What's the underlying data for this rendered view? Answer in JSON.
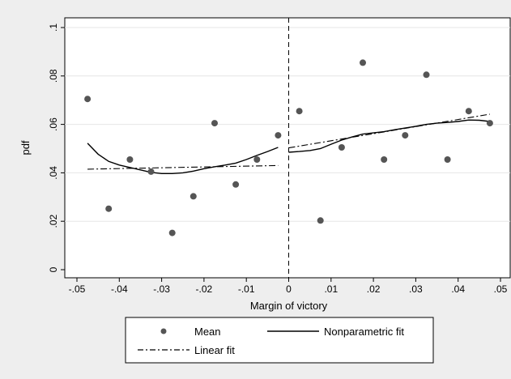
{
  "chart_data": {
    "type": "scatter",
    "xlabel": "Margin of victory",
    "ylabel": "pdf",
    "xlim": [
      -0.05,
      0.05
    ],
    "ylim": [
      0,
      0.1
    ],
    "grid": "horizontal",
    "x_ticks": [
      -0.05,
      -0.04,
      -0.03,
      -0.02,
      -0.01,
      0,
      0.01,
      0.02,
      0.03,
      0.04,
      0.05
    ],
    "x_tick_labels": [
      "-.05",
      "-.04",
      "-.03",
      "-.02",
      "-.01",
      "0",
      ".01",
      ".02",
      ".03",
      ".04",
      ".05"
    ],
    "y_ticks": [
      0,
      0.02,
      0.04,
      0.06,
      0.08,
      0.1
    ],
    "y_tick_labels": [
      "0",
      ".02",
      ".04",
      ".06",
      ".08",
      ".1"
    ],
    "cutoff_x": 0,
    "legend_placement": "bottom",
    "series": [
      {
        "name": "Mean",
        "kind": "points",
        "color": "#555555",
        "x": [
          -0.0475,
          -0.0425,
          -0.0375,
          -0.0325,
          -0.0275,
          -0.0225,
          -0.0175,
          -0.0125,
          -0.0075,
          -0.0025,
          0.0025,
          0.0075,
          0.0125,
          0.0175,
          0.0225,
          0.0275,
          0.0325,
          0.0375,
          0.0425,
          0.0475
        ],
        "y": [
          0.0705,
          0.0252,
          0.0455,
          0.0405,
          0.0152,
          0.0303,
          0.0605,
          0.0352,
          0.0455,
          0.0555,
          0.0655,
          0.0203,
          0.0505,
          0.0855,
          0.0455,
          0.0555,
          0.0805,
          0.0455,
          0.0655,
          0.0605
        ]
      },
      {
        "name": "Nonparametric fit",
        "kind": "line",
        "dash": "solid",
        "segments": [
          {
            "x": [
              -0.0475,
              -0.045,
              -0.0425,
              -0.04,
              -0.0375,
              -0.035,
              -0.0325,
              -0.03,
              -0.0275,
              -0.025,
              -0.0225,
              -0.02,
              -0.0175,
              -0.015,
              -0.0125,
              -0.01,
              -0.0075,
              -0.005,
              -0.0025
            ],
            "y": [
              0.0522,
              0.0477,
              0.0447,
              0.0432,
              0.0422,
              0.0412,
              0.0402,
              0.0397,
              0.0397,
              0.04,
              0.0407,
              0.0417,
              0.0425,
              0.0432,
              0.044,
              0.0455,
              0.0472,
              0.0488,
              0.0505
            ]
          },
          {
            "x": [
              0,
              0.0025,
              0.005,
              0.0075,
              0.01,
              0.0125,
              0.015,
              0.0175,
              0.02,
              0.0225,
              0.025,
              0.0275,
              0.03,
              0.0325,
              0.035,
              0.0375,
              0.04,
              0.0425,
              0.045,
              0.0475
            ],
            "y": [
              0.0485,
              0.0488,
              0.0492,
              0.05,
              0.0518,
              0.0535,
              0.0548,
              0.056,
              0.0565,
              0.057,
              0.0578,
              0.0585,
              0.0592,
              0.06,
              0.0605,
              0.0608,
              0.0612,
              0.0618,
              0.0617,
              0.0612
            ]
          }
        ]
      },
      {
        "name": "Linear fit",
        "kind": "line",
        "dash": "dash-dot",
        "segments": [
          {
            "x": [
              -0.0475,
              -0.0025
            ],
            "y": [
              0.0415,
              0.043
            ]
          },
          {
            "x": [
              0,
              0.0475
            ],
            "y": [
              0.0503,
              0.0642
            ]
          }
        ]
      }
    ]
  }
}
